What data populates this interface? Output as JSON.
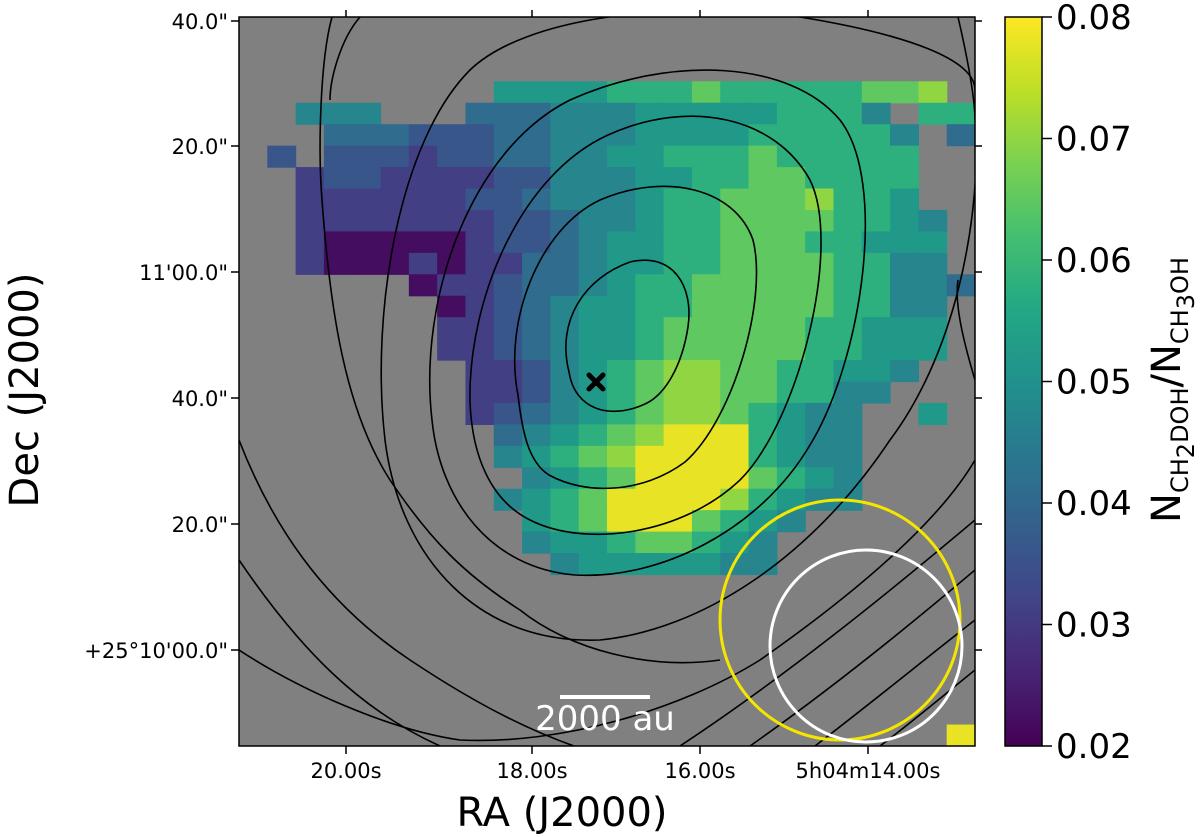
{
  "chart_data": {
    "type": "heatmap",
    "xlabel": "RA (J2000)",
    "ylabel": "Dec (J2000)",
    "colorbar": {
      "label_main": "N",
      "label_numerator_sub": "CH",
      "label_numerator_sub2": "2",
      "label_numerator_sub3": "DOH",
      "label_slash": "/N",
      "label_denominator_sub": "CH",
      "label_denominator_sub2": "3",
      "label_denominator_sub3": "OH",
      "range": [
        0.02,
        0.08
      ],
      "colormap": "viridis",
      "ticks": [
        "0.02",
        "0.03",
        "0.04",
        "0.05",
        "0.06",
        "0.07",
        "0.08"
      ]
    },
    "x_ticks": [
      "20.00s",
      "18.00s",
      "16.00s",
      "5h04m14.00s"
    ],
    "y_ticks": [
      "40.0\"",
      "20.0\"",
      "11'00.0\"",
      "40.0\"",
      "20.0\"",
      "+25°10'00.0\""
    ],
    "scalebar_label": "2000 au",
    "background_color": "#808080",
    "contour_color": "#000000",
    "peak_marker": "cross",
    "beams": [
      {
        "name": "yellow-beam",
        "color": "#f5e600"
      },
      {
        "name": "white-beam",
        "color": "#ffffff"
      }
    ],
    "pixel_map_rows": [
      "..........................",
      "..........................",
      "..........................",
      ".........FFFFGGGHGGGGGHHI.",
      "..EEE...DDDEEEFFFFFGGGE.GG",
      "...DDDCCCDDEEEFFFFGGGGGE.D",
      ".C.CCCBCCDDEEFFGGGHGGGGG..",
      "..BCCBBBBCCEEEFFGGHHGGGG..",
      "..BBBBBBCCDEEEFGGHHHIGGF..",
      "..BBBBBBBCCDEEFGGHHHHGGFE.",
      "..BAAAAABCCDEFFGGHHHGGFFF.",
      "..BAAABABBDDEFFGGHHHHGGEE.",
      "......ABBCDDEFGGHHHHHGGEED",
      ".......ABCDEFFGGHHHHHGGEE.",
      ".......BBCDEFFGHHHHHGGFFF.",
      ".......BBCDEFFGHHHHHGGFFF.",
      "........BBCEFGHIIHHGGFFE..",
      "........BBCEFGHIIHHGGEE...",
      "........BCDEFGHIIHGFEE..F.",
      ".........DEFGHIJJJGFEE....",
      ".........EFGHIJJJJGFEE....",
      "..........EFGHJJJJHGFE....",
      ".........EFGHJJJJIGFEE....",
      "..........FGHJJJHGFE......",
      "..........EFFGHHGFE.......",
      "...........EFFFFFEE.......",
      "..........................",
      "..........................",
      "..........................",
      "..........................",
      "..........................",
      "..........................",
      "..........................",
      ".........................J"
    ]
  }
}
